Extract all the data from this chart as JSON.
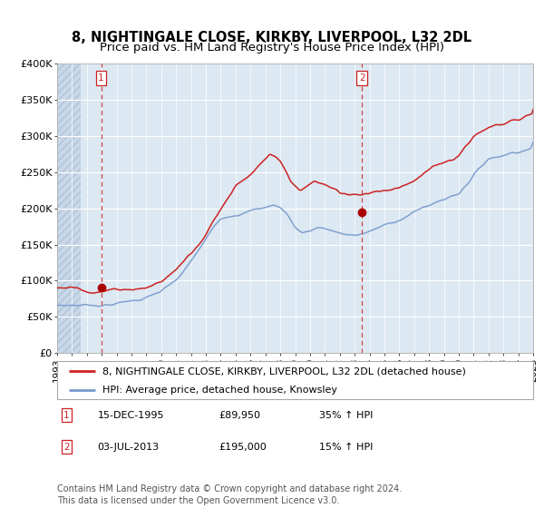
{
  "title_line1": "8, NIGHTINGALE CLOSE, KIRKBY, LIVERPOOL, L32 2DL",
  "title_line2": "Price paid vs. HM Land Registry's House Price Index (HPI)",
  "ylim": [
    0,
    400000
  ],
  "yticks": [
    0,
    50000,
    100000,
    150000,
    200000,
    250000,
    300000,
    350000,
    400000
  ],
  "ytick_labels": [
    "£0",
    "£50K",
    "£100K",
    "£150K",
    "£200K",
    "£250K",
    "£300K",
    "£350K",
    "£400K"
  ],
  "xstart_year": 1993,
  "xend_year": 2025,
  "hpi_color": "#7799cc",
  "price_color": "#cc2222",
  "dot_color": "#aa0000",
  "vline_color": "#cc4444",
  "bg_color": "#dce8f2",
  "grid_color": "#ffffff",
  "hatch_bg_color": "#c8d8e8",
  "legend_label_price": "8, NIGHTINGALE CLOSE, KIRKBY, LIVERPOOL, L32 2DL (detached house)",
  "legend_label_hpi": "HPI: Average price, detached house, Knowsley",
  "transaction1_date": "15-DEC-1995",
  "transaction1_price": "£89,950",
  "transaction1_hpi": "35% ↑ HPI",
  "transaction1_year": 1995.96,
  "transaction1_value": 89950,
  "transaction2_date": "03-JUL-2013",
  "transaction2_price": "£195,000",
  "transaction2_hpi": "15% ↑ HPI",
  "transaction2_year": 2013.5,
  "transaction2_value": 195000,
  "footer_text": "Contains HM Land Registry data © Crown copyright and database right 2024.\nThis data is licensed under the Open Government Licence v3.0.",
  "title_fontsize": 10.5,
  "subtitle_fontsize": 9.5,
  "tick_fontsize": 8,
  "legend_fontsize": 8,
  "table_fontsize": 8,
  "footer_fontsize": 7
}
